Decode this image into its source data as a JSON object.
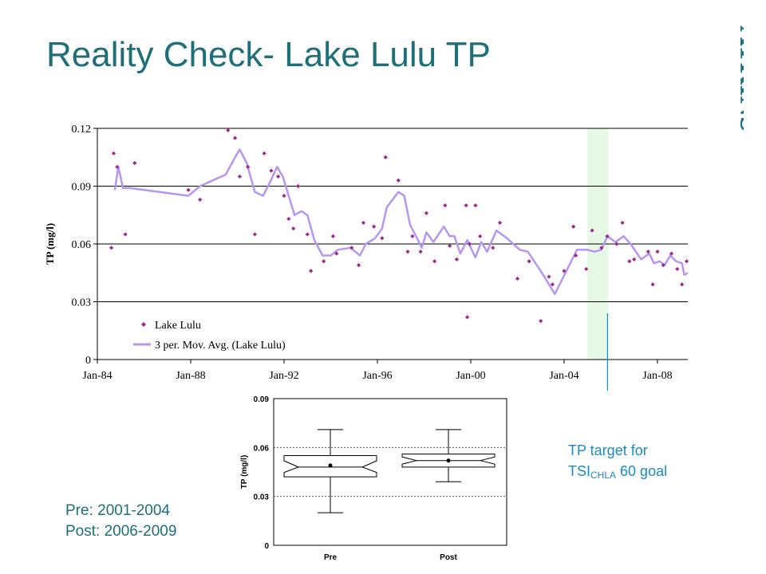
{
  "slide": {
    "title": "Reality Check- Lake Lulu TP",
    "logo_text": "ATKINS",
    "title_color": "#1f6f78",
    "note_lines": [
      "Pre: 2001-2004",
      "Post: 2006-2009"
    ],
    "annotation_line1": "TP target for",
    "annotation_tsi": "TSI",
    "annotation_sub": "CHLA",
    "annotation_rest": " 60 goal",
    "annotation_color": "#1a8bc1"
  },
  "chart_data": [
    {
      "type": "scatter",
      "title": "",
      "xlabel": "",
      "ylabel": "TP (mg/l)",
      "xlim": [
        1984.0,
        2009.3
      ],
      "ylim": [
        0,
        0.12
      ],
      "x_tick_labels": [
        "Jan-84",
        "Jan-88",
        "Jan-92",
        "Jan-96",
        "Jan-00",
        "Jan-04",
        "Jan-08"
      ],
      "x_ticks": [
        1984,
        1988,
        1992,
        1996,
        2000,
        2004,
        2008
      ],
      "y_tick_labels": [
        "0",
        "0.03",
        "0.06",
        "0.09",
        "0.12"
      ],
      "y_ticks": [
        0,
        0.03,
        0.06,
        0.09,
        0.12
      ],
      "grid": "horizontal",
      "legend_position": "bottom-left",
      "highlight_band": {
        "x_from": 2005.0,
        "x_to": 2005.9,
        "color": "#e6f9e6"
      },
      "series": [
        {
          "name": "Lake Lulu",
          "style": "markers",
          "color": "#a0288c",
          "points": [
            [
              1984.6,
              0.058
            ],
            [
              1984.7,
              0.107
            ],
            [
              1984.85,
              0.1
            ],
            [
              1985.2,
              0.065
            ],
            [
              1985.6,
              0.102
            ],
            [
              1987.9,
              0.088
            ],
            [
              1988.4,
              0.083
            ],
            [
              1989.6,
              0.119
            ],
            [
              1989.9,
              0.115
            ],
            [
              1990.1,
              0.095
            ],
            [
              1990.45,
              0.1
            ],
            [
              1990.75,
              0.065
            ],
            [
              1991.15,
              0.107
            ],
            [
              1991.45,
              0.098
            ],
            [
              1991.75,
              0.095
            ],
            [
              1992.0,
              0.085
            ],
            [
              1992.2,
              0.073
            ],
            [
              1992.4,
              0.068
            ],
            [
              1992.6,
              0.09
            ],
            [
              1993.0,
              0.065
            ],
            [
              1993.15,
              0.046
            ],
            [
              1993.7,
              0.051
            ],
            [
              1994.1,
              0.064
            ],
            [
              1994.25,
              0.055
            ],
            [
              1994.9,
              0.058
            ],
            [
              1995.2,
              0.049
            ],
            [
              1995.4,
              0.071
            ],
            [
              1995.85,
              0.069
            ],
            [
              1996.2,
              0.063
            ],
            [
              1996.35,
              0.105
            ],
            [
              1996.9,
              0.093
            ],
            [
              1997.3,
              0.056
            ],
            [
              1997.5,
              0.064
            ],
            [
              1997.85,
              0.056
            ],
            [
              1998.1,
              0.076
            ],
            [
              1998.45,
              0.051
            ],
            [
              1998.9,
              0.08
            ],
            [
              1999.1,
              0.059
            ],
            [
              1999.4,
              0.052
            ],
            [
              1999.8,
              0.08
            ],
            [
              1999.95,
              0.06
            ],
            [
              1999.85,
              0.022
            ],
            [
              2000.2,
              0.08
            ],
            [
              2000.4,
              0.064
            ],
            [
              2000.95,
              0.058
            ],
            [
              2001.25,
              0.071
            ],
            [
              2002.0,
              0.042
            ],
            [
              2002.5,
              0.051
            ],
            [
              2003.0,
              0.02
            ],
            [
              2003.35,
              0.043
            ],
            [
              2003.5,
              0.039
            ],
            [
              2004.0,
              0.046
            ],
            [
              2004.4,
              0.069
            ],
            [
              2004.5,
              0.054
            ],
            [
              2004.95,
              0.047
            ],
            [
              2005.2,
              0.067
            ],
            [
              2005.6,
              0.058
            ],
            [
              2005.85,
              0.064
            ],
            [
              2006.25,
              0.06
            ],
            [
              2006.5,
              0.071
            ],
            [
              2006.8,
              0.051
            ],
            [
              2007.0,
              0.052
            ],
            [
              2007.6,
              0.056
            ],
            [
              2007.8,
              0.039
            ],
            [
              2008.0,
              0.056
            ],
            [
              2008.25,
              0.049
            ],
            [
              2008.6,
              0.055
            ],
            [
              2008.85,
              0.047
            ],
            [
              2009.05,
              0.039
            ],
            [
              2009.25,
              0.051
            ]
          ]
        },
        {
          "name": "3 per. Mov. Avg. (Lake Lulu)",
          "style": "line",
          "color": "#b596f0",
          "points": [
            [
              1984.75,
              0.088
            ],
            [
              1984.9,
              0.1
            ],
            [
              1985.1,
              0.089
            ],
            [
              1985.4,
              0.089
            ],
            [
              1987.9,
              0.085
            ],
            [
              1988.4,
              0.09
            ],
            [
              1989.5,
              0.096
            ],
            [
              1989.9,
              0.105
            ],
            [
              1990.1,
              0.109
            ],
            [
              1990.4,
              0.102
            ],
            [
              1990.75,
              0.087
            ],
            [
              1991.1,
              0.085
            ],
            [
              1991.4,
              0.092
            ],
            [
              1991.7,
              0.1
            ],
            [
              1991.95,
              0.095
            ],
            [
              1992.2,
              0.085
            ],
            [
              1992.45,
              0.075
            ],
            [
              1992.75,
              0.077
            ],
            [
              1993.0,
              0.075
            ],
            [
              1993.3,
              0.062
            ],
            [
              1993.65,
              0.054
            ],
            [
              1994.0,
              0.054
            ],
            [
              1994.3,
              0.057
            ],
            [
              1994.85,
              0.058
            ],
            [
              1995.25,
              0.054
            ],
            [
              1995.5,
              0.06
            ],
            [
              1995.9,
              0.063
            ],
            [
              1996.2,
              0.068
            ],
            [
              1996.4,
              0.079
            ],
            [
              1996.9,
              0.087
            ],
            [
              1997.15,
              0.085
            ],
            [
              1997.4,
              0.07
            ],
            [
              1997.7,
              0.063
            ],
            [
              1997.9,
              0.058
            ],
            [
              1998.1,
              0.066
            ],
            [
              1998.4,
              0.061
            ],
            [
              1998.85,
              0.069
            ],
            [
              1999.1,
              0.064
            ],
            [
              1999.3,
              0.064
            ],
            [
              1999.55,
              0.055
            ],
            [
              1999.85,
              0.062
            ],
            [
              2000.2,
              0.053
            ],
            [
              2000.45,
              0.061
            ],
            [
              2000.7,
              0.056
            ],
            [
              2001.1,
              0.067
            ],
            [
              2001.55,
              0.063
            ],
            [
              2002.1,
              0.057
            ],
            [
              2002.45,
              0.056
            ],
            [
              2003.1,
              0.044
            ],
            [
              2003.6,
              0.034
            ],
            [
              2004.1,
              0.046
            ],
            [
              2004.55,
              0.057
            ],
            [
              2005.0,
              0.057
            ],
            [
              2005.3,
              0.056
            ],
            [
              2005.6,
              0.057
            ],
            [
              2005.85,
              0.064
            ],
            [
              2006.2,
              0.061
            ],
            [
              2006.55,
              0.064
            ],
            [
              2006.85,
              0.06
            ],
            [
              2007.3,
              0.052
            ],
            [
              2007.65,
              0.055
            ],
            [
              2007.85,
              0.05
            ],
            [
              2008.1,
              0.051
            ],
            [
              2008.3,
              0.049
            ],
            [
              2008.55,
              0.054
            ],
            [
              2008.8,
              0.051
            ],
            [
              2009.05,
              0.05
            ],
            [
              2009.15,
              0.044
            ],
            [
              2009.3,
              0.045
            ]
          ]
        }
      ]
    },
    {
      "type": "box",
      "title": "",
      "xlabel": "",
      "ylabel": "TP (mg/l)",
      "ylim": [
        0,
        0.09
      ],
      "y_tick_labels": [
        "0",
        "0.03",
        "0.06",
        "0.09"
      ],
      "y_ticks": [
        0,
        0.03,
        0.06,
        0.09
      ],
      "grid": "dotted horizontal at 0.03 and 0.06",
      "categories": [
        "Pre",
        "Post"
      ],
      "boxes": [
        {
          "name": "Pre",
          "whisker_low": 0.02,
          "q1": 0.042,
          "median": 0.048,
          "q3": 0.055,
          "whisker_high": 0.071,
          "mean": 0.049
        },
        {
          "name": "Post",
          "whisker_low": 0.039,
          "q1": 0.048,
          "median": 0.052,
          "q3": 0.056,
          "whisker_high": 0.071,
          "mean": 0.052
        }
      ]
    }
  ]
}
